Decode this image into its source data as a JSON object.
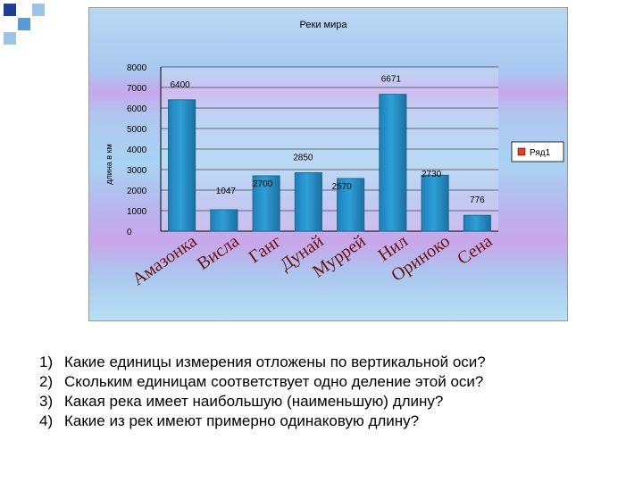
{
  "chart_data": {
    "type": "bar",
    "title": "Реки мира",
    "ylabel": "длина в км",
    "xlabel": "",
    "categories": [
      "Амазонка",
      "Висла",
      "Ганг",
      "Дунай",
      "Муррей",
      "Нил",
      "Ориноко",
      "Сена"
    ],
    "series": [
      {
        "name": "Ряд1",
        "values": [
          6400,
          1047,
          2700,
          2850,
          2570,
          6671,
          2730,
          776
        ]
      }
    ],
    "ylim": [
      0,
      8000
    ],
    "yticks": [
      "0",
      "1000",
      "2000",
      "3000",
      "4000",
      "5000",
      "6000",
      "7000",
      "8000"
    ],
    "grid": true,
    "legend": "right",
    "colors": {
      "bar": "#2f9fd6",
      "bar_edge": "#1a5f86",
      "legend_swatch": "#e63b2e"
    }
  },
  "questions": [
    {
      "num": "1)",
      "text": "Какие единицы измерения отложены по вертикальной оси?"
    },
    {
      "num": "2)",
      "text": "Скольким единицам соответствует одно деление этой оси?"
    },
    {
      "num": "3)",
      "text": "Какая река имеет наибольшую (наименьшую) длину?"
    },
    {
      "num": "4)",
      "text": "Какие из рек имеют примерно одинаковую длину?"
    }
  ],
  "decor_colors": [
    "#1f3f8f",
    "#5b9bd5",
    "#9fc3e6"
  ]
}
